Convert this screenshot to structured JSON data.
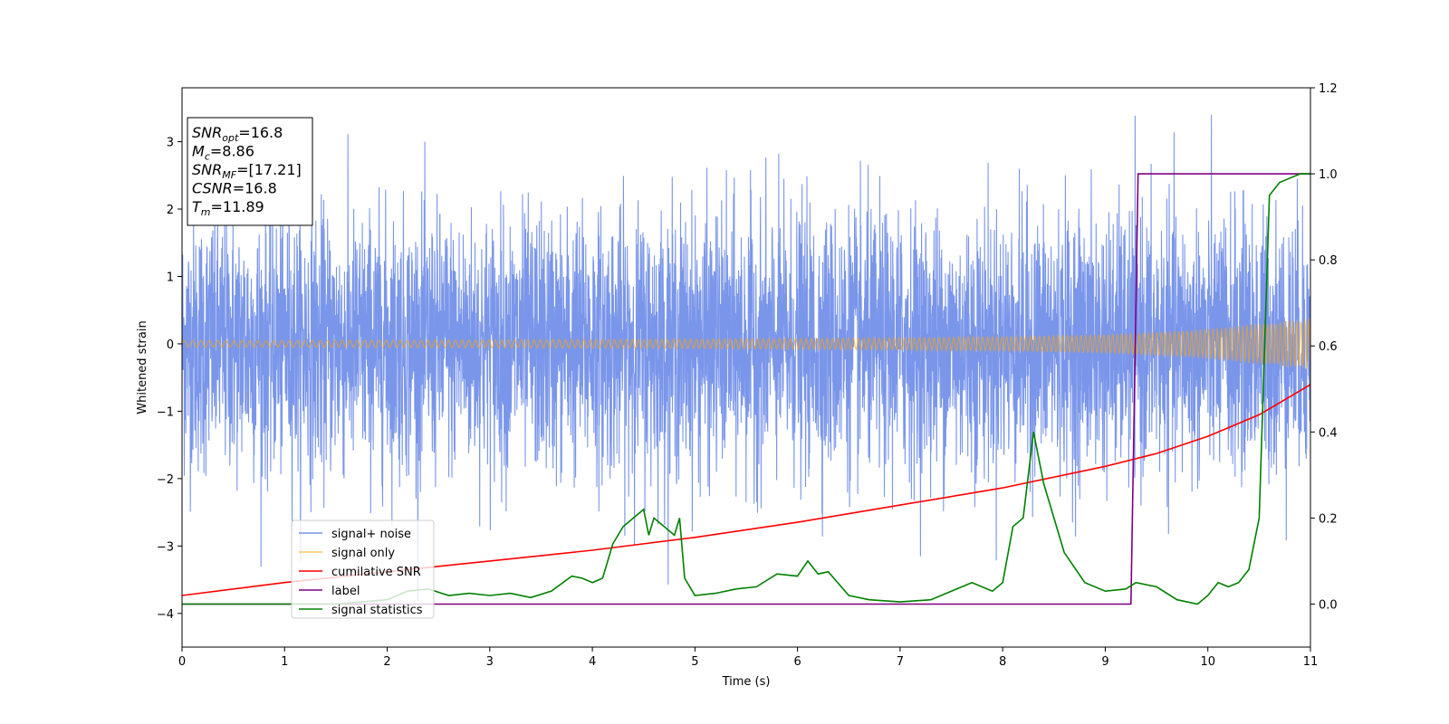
{
  "chart_data": {
    "type": "line",
    "xlabel": "Time (s)",
    "ylabel": "Whitened strain",
    "xlim": [
      0,
      11
    ],
    "ylim": [
      -4.5,
      3.8
    ],
    "y2lim": [
      -0.1,
      1.2
    ],
    "x_ticks": [
      0,
      1,
      2,
      3,
      4,
      5,
      6,
      7,
      8,
      9,
      10,
      11
    ],
    "y_ticks": [
      -4,
      -3,
      -2,
      -1,
      0,
      1,
      2,
      3
    ],
    "y2_ticks": [
      0.0,
      0.2,
      0.4,
      0.6,
      0.8,
      1.0,
      1.2
    ],
    "info_box": [
      {
        "main": "SNR",
        "sub": "opt",
        "value": "=16.8"
      },
      {
        "main": "M",
        "sub": "c",
        "value": "=8.86"
      },
      {
        "main": "SNR",
        "sub": "MF",
        "value": "=[17.21]"
      },
      {
        "main": "CSNR",
        "sub": "",
        "value": "=16.8"
      },
      {
        "main": "T",
        "sub": "m",
        "value": "=11.89"
      }
    ],
    "legend_position": "lower-left",
    "series": [
      {
        "name": "signal+ noise",
        "color": "#4169E1",
        "axis": "left",
        "description": "whitened noise, envelope approx ±2.5 with spikes to ±3.5",
        "envelope": {
          "x": [
            0,
            11
          ],
          "upper": [
            2.2,
            2.2
          ],
          "lower": [
            -2.2,
            -2.2
          ]
        }
      },
      {
        "name": "signal only",
        "color": "#FFA500",
        "axis": "left",
        "envelope": {
          "x": [
            0,
            1,
            2,
            3,
            4,
            5,
            6,
            7,
            8,
            9,
            10,
            11
          ],
          "amplitude": [
            0.05,
            0.05,
            0.055,
            0.06,
            0.065,
            0.07,
            0.08,
            0.09,
            0.11,
            0.14,
            0.22,
            0.38
          ]
        }
      },
      {
        "name": "cumilative SNR",
        "color": "#FF0000",
        "axis": "right",
        "x": [
          0,
          1,
          2,
          3,
          4,
          5,
          6,
          7,
          8,
          9,
          9.5,
          10,
          10.5,
          11
        ],
        "y": [
          0.02,
          0.05,
          0.075,
          0.1,
          0.125,
          0.155,
          0.19,
          0.23,
          0.27,
          0.32,
          0.35,
          0.39,
          0.44,
          0.51
        ]
      },
      {
        "name": "label",
        "color": "#800080",
        "axis": "right",
        "x": [
          0,
          9.25,
          9.32,
          11
        ],
        "y": [
          0,
          0,
          1,
          1
        ]
      },
      {
        "name": "signal statistics",
        "color": "#008000",
        "axis": "right",
        "x": [
          0,
          1.5,
          2.0,
          2.2,
          2.4,
          2.6,
          2.8,
          3.0,
          3.2,
          3.4,
          3.6,
          3.8,
          3.9,
          4.0,
          4.1,
          4.2,
          4.3,
          4.4,
          4.5,
          4.55,
          4.6,
          4.7,
          4.8,
          4.85,
          4.9,
          5.0,
          5.2,
          5.4,
          5.6,
          5.8,
          6.0,
          6.1,
          6.2,
          6.3,
          6.5,
          6.7,
          7.0,
          7.3,
          7.5,
          7.7,
          7.9,
          8.0,
          8.1,
          8.2,
          8.3,
          8.4,
          8.5,
          8.6,
          8.8,
          9.0,
          9.2,
          9.3,
          9.5,
          9.7,
          9.9,
          10.0,
          10.1,
          10.2,
          10.3,
          10.4,
          10.5,
          10.6,
          10.7,
          10.8,
          10.9,
          11.0
        ],
        "y": [
          0.0,
          0.0,
          0.01,
          0.03,
          0.035,
          0.02,
          0.025,
          0.02,
          0.025,
          0.015,
          0.03,
          0.065,
          0.06,
          0.05,
          0.06,
          0.14,
          0.18,
          0.2,
          0.22,
          0.16,
          0.2,
          0.18,
          0.16,
          0.2,
          0.06,
          0.02,
          0.025,
          0.035,
          0.04,
          0.07,
          0.065,
          0.1,
          0.07,
          0.075,
          0.02,
          0.01,
          0.005,
          0.01,
          0.03,
          0.05,
          0.03,
          0.05,
          0.18,
          0.2,
          0.4,
          0.28,
          0.2,
          0.12,
          0.05,
          0.03,
          0.035,
          0.05,
          0.04,
          0.01,
          0.0,
          0.02,
          0.05,
          0.04,
          0.05,
          0.08,
          0.2,
          0.95,
          0.98,
          0.99,
          1.0,
          1.0
        ]
      }
    ]
  }
}
